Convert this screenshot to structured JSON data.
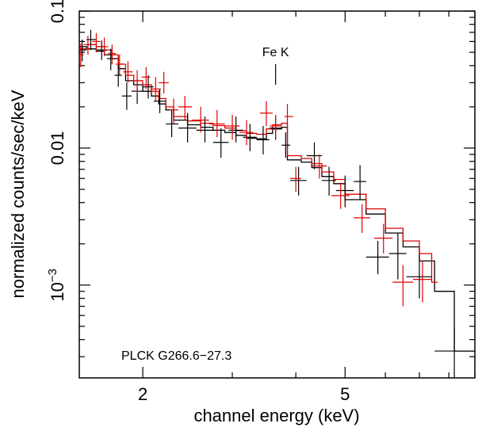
{
  "chart_data": {
    "type": "scatter",
    "xlabel": "channel energy (keV)",
    "ylabel": "normalized counts/sec/keV",
    "xscale": "log",
    "yscale": "log",
    "xlim": [
      1.5,
      9.0
    ],
    "ylim": [
      0.00021,
      0.1
    ],
    "x_ticks": [
      {
        "value": 2,
        "label": "2"
      },
      {
        "value": 5,
        "label": "5"
      }
    ],
    "y_ticks": [
      {
        "value": 0.1,
        "base": "0.1",
        "exp": ""
      },
      {
        "value": 0.01,
        "base": "0.01",
        "exp": ""
      },
      {
        "value": 0.001,
        "base": "10",
        "exp": "−3"
      }
    ],
    "annotations": [
      {
        "text": "Fe K",
        "x": 3.65,
        "y_from": 0.029,
        "y_to": 0.041
      }
    ],
    "label": "PLCK G266.6−27.3",
    "colors": {
      "series_1": "#000000",
      "series_2": "#e00000"
    },
    "series": [
      {
        "color": "#000000",
        "points": [
          {
            "x": 1.52,
            "xlo": 1.5,
            "xhi": 1.55,
            "y": 0.052,
            "ylo": 0.043,
            "yhi": 0.062
          },
          {
            "x": 1.58,
            "xlo": 1.55,
            "xhi": 1.62,
            "y": 0.062,
            "ylo": 0.052,
            "yhi": 0.073
          },
          {
            "x": 1.66,
            "xlo": 1.62,
            "xhi": 1.7,
            "y": 0.052,
            "ylo": 0.044,
            "yhi": 0.061
          },
          {
            "x": 1.73,
            "xlo": 1.7,
            "xhi": 1.76,
            "y": 0.045,
            "ylo": 0.037,
            "yhi": 0.053
          },
          {
            "x": 1.79,
            "xlo": 1.76,
            "xhi": 1.82,
            "y": 0.034,
            "ylo": 0.028,
            "yhi": 0.041
          },
          {
            "x": 1.86,
            "xlo": 1.82,
            "xhi": 1.9,
            "y": 0.024,
            "ylo": 0.019,
            "yhi": 0.03
          },
          {
            "x": 1.95,
            "xlo": 1.9,
            "xhi": 2.0,
            "y": 0.026,
            "ylo": 0.021,
            "yhi": 0.032
          },
          {
            "x": 2.05,
            "xlo": 2.0,
            "xhi": 2.1,
            "y": 0.028,
            "ylo": 0.023,
            "yhi": 0.034
          },
          {
            "x": 2.16,
            "xlo": 2.1,
            "xhi": 2.22,
            "y": 0.022,
            "ylo": 0.018,
            "yhi": 0.027
          },
          {
            "x": 2.28,
            "xlo": 2.22,
            "xhi": 2.35,
            "y": 0.015,
            "ylo": 0.012,
            "yhi": 0.019
          },
          {
            "x": 2.45,
            "xlo": 2.35,
            "xhi": 2.55,
            "y": 0.014,
            "ylo": 0.011,
            "yhi": 0.018
          },
          {
            "x": 2.65,
            "xlo": 2.55,
            "xhi": 2.75,
            "y": 0.0135,
            "ylo": 0.011,
            "yhi": 0.017
          },
          {
            "x": 2.85,
            "xlo": 2.75,
            "xhi": 2.95,
            "y": 0.011,
            "ylo": 0.0085,
            "yhi": 0.014
          },
          {
            "x": 3.05,
            "xlo": 2.95,
            "xhi": 3.15,
            "y": 0.0135,
            "ylo": 0.011,
            "yhi": 0.017
          },
          {
            "x": 3.25,
            "xlo": 3.15,
            "xhi": 3.35,
            "y": 0.012,
            "ylo": 0.0095,
            "yhi": 0.015
          },
          {
            "x": 3.45,
            "xlo": 3.35,
            "xhi": 3.55,
            "y": 0.0115,
            "ylo": 0.009,
            "yhi": 0.0145
          },
          {
            "x": 3.65,
            "xlo": 3.55,
            "xhi": 3.75,
            "y": 0.014,
            "ylo": 0.0115,
            "yhi": 0.017
          },
          {
            "x": 3.82,
            "xlo": 3.75,
            "xhi": 3.9,
            "y": 0.0105,
            "ylo": 0.0085,
            "yhi": 0.013
          },
          {
            "x": 4.05,
            "xlo": 3.9,
            "xhi": 4.2,
            "y": 0.0058,
            "ylo": 0.0045,
            "yhi": 0.0073
          },
          {
            "x": 4.35,
            "xlo": 4.2,
            "xhi": 4.5,
            "y": 0.0088,
            "ylo": 0.007,
            "yhi": 0.011
          },
          {
            "x": 4.65,
            "xlo": 4.5,
            "xhi": 4.8,
            "y": 0.0058,
            "ylo": 0.0045,
            "yhi": 0.0073
          },
          {
            "x": 5.0,
            "xlo": 4.8,
            "xhi": 5.2,
            "y": 0.0049,
            "ylo": 0.0037,
            "yhi": 0.0063
          },
          {
            "x": 5.35,
            "xlo": 5.2,
            "xhi": 5.5,
            "y": 0.0057,
            "ylo": 0.0042,
            "yhi": 0.0075
          },
          {
            "x": 5.8,
            "xlo": 5.5,
            "xhi": 6.1,
            "y": 0.0016,
            "ylo": 0.0012,
            "yhi": 0.0021
          },
          {
            "x": 6.35,
            "xlo": 6.1,
            "xhi": 6.6,
            "y": 0.0017,
            "ylo": 0.0011,
            "yhi": 0.0024
          },
          {
            "x": 7.0,
            "xlo": 6.6,
            "xhi": 7.4,
            "y": 0.00115,
            "ylo": 0.0008,
            "yhi": 0.0016
          },
          {
            "x": 8.2,
            "xlo": 7.5,
            "xhi": 9.0,
            "y": 0.00033,
            "ylo": 0.00021,
            "yhi": 0.00048
          }
        ],
        "model": [
          [
            1.5,
            0.055
          ],
          [
            1.55,
            0.053
          ],
          [
            1.62,
            0.051
          ],
          [
            1.68,
            0.048
          ],
          [
            1.74,
            0.045
          ],
          [
            1.79,
            0.038
          ],
          [
            1.85,
            0.031
          ],
          [
            1.92,
            0.029
          ],
          [
            2.0,
            0.026
          ],
          [
            2.08,
            0.024
          ],
          [
            2.15,
            0.021
          ],
          [
            2.22,
            0.019
          ],
          [
            2.3,
            0.016
          ],
          [
            2.45,
            0.0148
          ],
          [
            2.6,
            0.0142
          ],
          [
            2.75,
            0.0135
          ],
          [
            2.9,
            0.013
          ],
          [
            3.05,
            0.0124
          ],
          [
            3.2,
            0.0118
          ],
          [
            3.35,
            0.0117
          ],
          [
            3.5,
            0.0128
          ],
          [
            3.6,
            0.0138
          ],
          [
            3.75,
            0.0142
          ],
          [
            3.85,
            0.0082
          ],
          [
            4.1,
            0.0079
          ],
          [
            4.3,
            0.0072
          ],
          [
            4.5,
            0.0062
          ],
          [
            4.75,
            0.0055
          ],
          [
            5.0,
            0.0042
          ],
          [
            5.5,
            0.0033
          ],
          [
            6.0,
            0.0024
          ],
          [
            6.5,
            0.0019
          ],
          [
            7.0,
            0.0015
          ],
          [
            7.5,
            0.0009
          ],
          [
            8.2,
            0.00033
          ],
          [
            9.0,
            0.00033
          ]
        ]
      },
      {
        "color": "#e00000",
        "points": [
          {
            "x": 1.51,
            "xlo": 1.5,
            "xhi": 1.53,
            "y": 0.048,
            "ylo": 0.039,
            "yhi": 0.058
          },
          {
            "x": 1.56,
            "xlo": 1.53,
            "xhi": 1.59,
            "y": 0.057,
            "ylo": 0.048,
            "yhi": 0.066
          },
          {
            "x": 1.62,
            "xlo": 1.59,
            "xhi": 1.65,
            "y": 0.06,
            "ylo": 0.05,
            "yhi": 0.069
          },
          {
            "x": 1.68,
            "xlo": 1.65,
            "xhi": 1.71,
            "y": 0.055,
            "ylo": 0.047,
            "yhi": 0.064
          },
          {
            "x": 1.74,
            "xlo": 1.71,
            "xhi": 1.77,
            "y": 0.049,
            "ylo": 0.041,
            "yhi": 0.057
          },
          {
            "x": 1.8,
            "xlo": 1.77,
            "xhi": 1.83,
            "y": 0.041,
            "ylo": 0.034,
            "yhi": 0.048
          },
          {
            "x": 1.87,
            "xlo": 1.83,
            "xhi": 1.91,
            "y": 0.036,
            "ylo": 0.03,
            "yhi": 0.043
          },
          {
            "x": 1.95,
            "xlo": 1.91,
            "xhi": 1.99,
            "y": 0.031,
            "ylo": 0.025,
            "yhi": 0.037
          },
          {
            "x": 2.03,
            "xlo": 1.99,
            "xhi": 2.07,
            "y": 0.033,
            "ylo": 0.027,
            "yhi": 0.039
          },
          {
            "x": 2.12,
            "xlo": 2.07,
            "xhi": 2.17,
            "y": 0.027,
            "ylo": 0.022,
            "yhi": 0.033
          },
          {
            "x": 2.2,
            "xlo": 2.15,
            "xhi": 2.25,
            "y": 0.03,
            "ylo": 0.025,
            "yhi": 0.036
          },
          {
            "x": 2.3,
            "xlo": 2.25,
            "xhi": 2.35,
            "y": 0.019,
            "ylo": 0.015,
            "yhi": 0.023
          },
          {
            "x": 2.42,
            "xlo": 2.35,
            "xhi": 2.5,
            "y": 0.02,
            "ylo": 0.016,
            "yhi": 0.024
          },
          {
            "x": 2.6,
            "xlo": 2.5,
            "xhi": 2.7,
            "y": 0.016,
            "ylo": 0.013,
            "yhi": 0.02
          },
          {
            "x": 2.8,
            "xlo": 2.7,
            "xhi": 2.9,
            "y": 0.015,
            "ylo": 0.012,
            "yhi": 0.019
          },
          {
            "x": 3.0,
            "xlo": 2.9,
            "xhi": 3.1,
            "y": 0.0145,
            "ylo": 0.0115,
            "yhi": 0.0175
          },
          {
            "x": 3.2,
            "xlo": 3.1,
            "xhi": 3.3,
            "y": 0.013,
            "ylo": 0.0105,
            "yhi": 0.016
          },
          {
            "x": 3.5,
            "xlo": 3.4,
            "xhi": 3.6,
            "y": 0.018,
            "ylo": 0.0145,
            "yhi": 0.022
          },
          {
            "x": 3.65,
            "xlo": 3.55,
            "xhi": 3.75,
            "y": 0.0145,
            "ylo": 0.012,
            "yhi": 0.0175
          },
          {
            "x": 3.85,
            "xlo": 3.8,
            "xhi": 3.95,
            "y": 0.017,
            "ylo": 0.014,
            "yhi": 0.021
          },
          {
            "x": 4.0,
            "xlo": 3.9,
            "xhi": 4.1,
            "y": 0.006,
            "ylo": 0.0048,
            "yhi": 0.0073
          },
          {
            "x": 4.45,
            "xlo": 4.3,
            "xhi": 4.6,
            "y": 0.0074,
            "ylo": 0.006,
            "yhi": 0.009
          },
          {
            "x": 4.9,
            "xlo": 4.7,
            "xhi": 5.1,
            "y": 0.0045,
            "ylo": 0.0036,
            "yhi": 0.0056
          },
          {
            "x": 5.4,
            "xlo": 5.2,
            "xhi": 5.6,
            "y": 0.0031,
            "ylo": 0.0024,
            "yhi": 0.0039
          },
          {
            "x": 5.95,
            "xlo": 5.7,
            "xhi": 6.2,
            "y": 0.0022,
            "ylo": 0.0017,
            "yhi": 0.0028
          },
          {
            "x": 6.5,
            "xlo": 6.2,
            "xhi": 6.8,
            "y": 0.00105,
            "ylo": 0.0007,
            "yhi": 0.0014
          },
          {
            "x": 7.1,
            "xlo": 6.8,
            "xhi": 7.4,
            "y": 0.0011,
            "ylo": 0.00075,
            "yhi": 0.0015
          }
        ],
        "model": [
          [
            1.5,
            0.053
          ],
          [
            1.56,
            0.057
          ],
          [
            1.62,
            0.055
          ],
          [
            1.68,
            0.052
          ],
          [
            1.74,
            0.048
          ],
          [
            1.79,
            0.041
          ],
          [
            1.85,
            0.034
          ],
          [
            1.92,
            0.031
          ],
          [
            2.0,
            0.029
          ],
          [
            2.08,
            0.026
          ],
          [
            2.15,
            0.023
          ],
          [
            2.22,
            0.02
          ],
          [
            2.3,
            0.017
          ],
          [
            2.45,
            0.0158
          ],
          [
            2.6,
            0.0152
          ],
          [
            2.75,
            0.0146
          ],
          [
            2.9,
            0.014
          ],
          [
            3.05,
            0.0134
          ],
          [
            3.2,
            0.0128
          ],
          [
            3.35,
            0.0126
          ],
          [
            3.5,
            0.0138
          ],
          [
            3.6,
            0.0148
          ],
          [
            3.75,
            0.0152
          ],
          [
            3.85,
            0.0088
          ],
          [
            4.1,
            0.0084
          ],
          [
            4.3,
            0.0077
          ],
          [
            4.5,
            0.0067
          ],
          [
            4.75,
            0.0059
          ],
          [
            5.0,
            0.0046
          ],
          [
            5.5,
            0.0036
          ],
          [
            6.0,
            0.0026
          ],
          [
            6.5,
            0.0021
          ],
          [
            7.0,
            0.0017
          ],
          [
            7.4,
            0.00105
          ],
          [
            7.6,
            0.00105
          ]
        ]
      }
    ]
  }
}
